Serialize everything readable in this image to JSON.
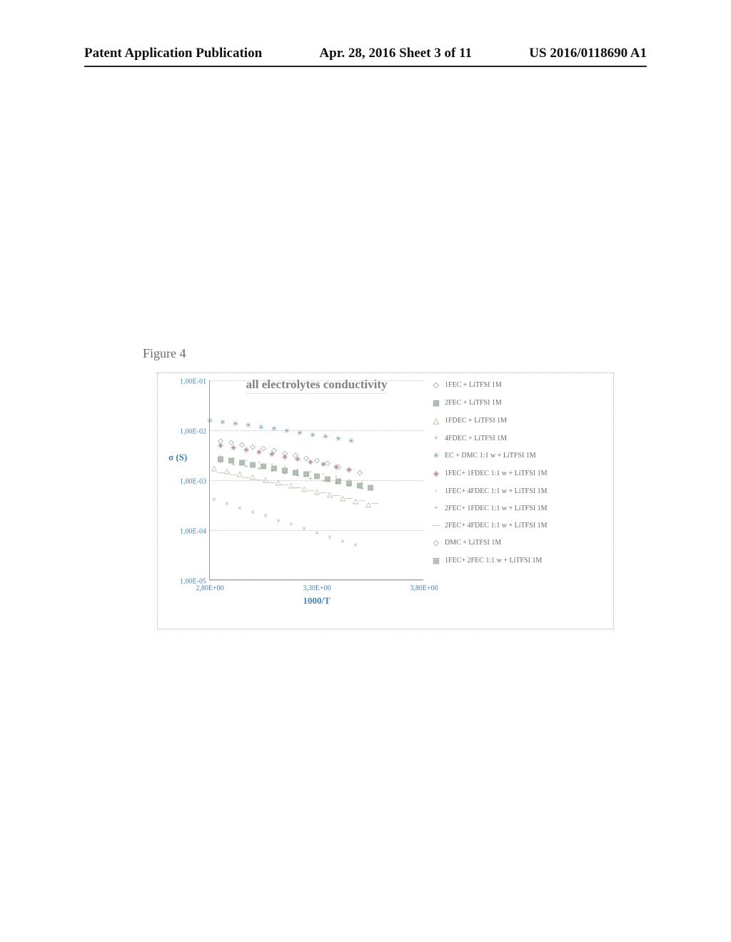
{
  "header": {
    "left": "Patent Application Publication",
    "center": "Apr. 28, 2016  Sheet 3 of 11",
    "right": "US 2016/0118690 A1"
  },
  "figure_caption": "Figure 4",
  "chart": {
    "type": "scatter",
    "title": "all electrolytes conductivity",
    "title_color": "#808080",
    "title_fontsize": 17,
    "background_color": "#ffffff",
    "grid_color": "#c8c8c8",
    "axis_color": "#999999",
    "tick_color": "#4682b4",
    "label_color": "#4682b4",
    "ylabel": "σ (S)",
    "xlabel": "1000/T",
    "y_scale": "log",
    "ylim": [
      1e-05,
      0.1
    ],
    "xlim": [
      2.8,
      3.8
    ],
    "yticks": [
      "1,00E-01",
      "1,00E-02",
      "1,00E-03",
      "1,00E-04",
      "1,00E-05"
    ],
    "xticks": [
      "2,80E+00",
      "3,30E+00",
      "3,80E+00"
    ],
    "series": [
      {
        "name": "1FEC + LiTFSI 1M",
        "marker": "◇",
        "color": "#7a8aa8",
        "x": [
          2.85,
          2.9,
          2.95,
          3.0,
          3.05,
          3.1,
          3.15,
          3.2,
          3.25,
          3.3,
          3.35,
          3.4,
          3.45,
          3.5
        ],
        "y": [
          0.006,
          0.0055,
          0.005,
          0.0046,
          0.0042,
          0.0038,
          0.0034,
          0.0031,
          0.0027,
          0.0024,
          0.0021,
          0.0018,
          0.0016,
          0.0014
        ]
      },
      {
        "name": "2FEC + LiTFSI 1M",
        "marker": "▩",
        "color": "#8a9a8a",
        "x": [
          2.85,
          2.9,
          2.95,
          3.0,
          3.05,
          3.1,
          3.15,
          3.2,
          3.25,
          3.3,
          3.35,
          3.4,
          3.45,
          3.5,
          3.55
        ],
        "y": [
          0.0026,
          0.0024,
          0.0022,
          0.002,
          0.00185,
          0.0017,
          0.00155,
          0.0014,
          0.0013,
          0.00116,
          0.00105,
          0.00095,
          0.00086,
          0.00078,
          0.0007
        ]
      },
      {
        "name": "1FDEC + LiTFSI 1M",
        "marker": "△",
        "color": "#a89a7a",
        "x": [
          2.82,
          2.88,
          2.94,
          3.0,
          3.06,
          3.12,
          3.18,
          3.24,
          3.3,
          3.36,
          3.42,
          3.48,
          3.54
        ],
        "y": [
          0.0017,
          0.0015,
          0.00132,
          0.00115,
          0.001,
          0.00088,
          0.00076,
          0.00066,
          0.00057,
          0.0005,
          0.00043,
          0.00037,
          0.00032
        ]
      },
      {
        "name": "4FDEC + LiTFSI 1M",
        "marker": "×",
        "color": "#9a8aa8",
        "x": [
          2.82,
          2.88,
          2.94,
          3.0,
          3.06,
          3.12,
          3.18,
          3.24,
          3.3,
          3.36,
          3.42,
          3.48
        ],
        "y": [
          0.0004,
          0.00033,
          0.00027,
          0.00022,
          0.000185,
          0.00015,
          0.000125,
          0.000105,
          8.5e-05,
          7e-05,
          5.8e-05,
          4.8e-05
        ]
      },
      {
        "name": "EC + DMC 1:1 w + LiTFSI 1M",
        "marker": "✳",
        "color": "#6a9aa8",
        "x": [
          2.8,
          2.86,
          2.92,
          2.98,
          3.04,
          3.1,
          3.16,
          3.22,
          3.28,
          3.34,
          3.4,
          3.46
        ],
        "y": [
          0.015,
          0.014,
          0.013,
          0.012,
          0.011,
          0.0102,
          0.0093,
          0.0085,
          0.0078,
          0.0071,
          0.0065,
          0.0059
        ]
      },
      {
        "name": "1FEC+ 1FDEC 1:1 w + LiTFSI 1M",
        "marker": "◈",
        "color": "#b08a8a",
        "x": [
          2.85,
          2.91,
          2.97,
          3.03,
          3.09,
          3.15,
          3.21,
          3.27,
          3.33,
          3.39,
          3.45
        ],
        "y": [
          0.0048,
          0.0044,
          0.004,
          0.0036,
          0.0033,
          0.0029,
          0.0026,
          0.0023,
          0.00205,
          0.0018,
          0.0016
        ]
      },
      {
        "name": "1FEC+ 4FDEC 1:1 w + LiTFSI 1M",
        "marker": "◦",
        "color": "#a8a88a",
        "x": [
          2.85,
          2.91,
          2.97,
          3.03,
          3.09,
          3.15,
          3.21,
          3.27,
          3.33,
          3.39,
          3.45,
          3.51
        ],
        "y": [
          0.003,
          0.0027,
          0.00245,
          0.0022,
          0.002,
          0.00178,
          0.0016,
          0.00142,
          0.00127,
          0.00113,
          0.001,
          0.00089
        ]
      },
      {
        "name": "2FEC+ 1FDEC 1:1 w + LiTFSI 1M",
        "marker": "+",
        "color": "#8aa89a",
        "x": [
          2.85,
          2.91,
          2.97,
          3.03,
          3.09,
          3.15,
          3.21,
          3.27,
          3.33,
          3.39,
          3.45,
          3.51
        ],
        "y": [
          0.0022,
          0.002,
          0.00182,
          0.00163,
          0.00147,
          0.00131,
          0.00118,
          0.00105,
          0.00094,
          0.00084,
          0.00075,
          0.00066
        ]
      },
      {
        "name": "2FEC+ 4FDEC 1:1 w + LiTFSI 1M",
        "marker": "—",
        "color": "#9a9a9a",
        "x": [
          2.85,
          2.91,
          2.97,
          3.03,
          3.09,
          3.15,
          3.21,
          3.27,
          3.33,
          3.39,
          3.45,
          3.51,
          3.57
        ],
        "y": [
          0.0014,
          0.00125,
          0.00112,
          0.001,
          0.00089,
          0.00079,
          0.0007,
          0.00062,
          0.00055,
          0.00049,
          0.00043,
          0.00038,
          0.00034
        ]
      },
      {
        "name": "DMC + LiTFSI 1M",
        "marker": "◇",
        "color": "#8a8aa8",
        "x": [],
        "y": []
      },
      {
        "name": "1FEC+ 2FEC 1:1 w + LiTFSI 1M",
        "marker": "▦",
        "color": "#9a9a9a",
        "x": [],
        "y": []
      }
    ]
  }
}
